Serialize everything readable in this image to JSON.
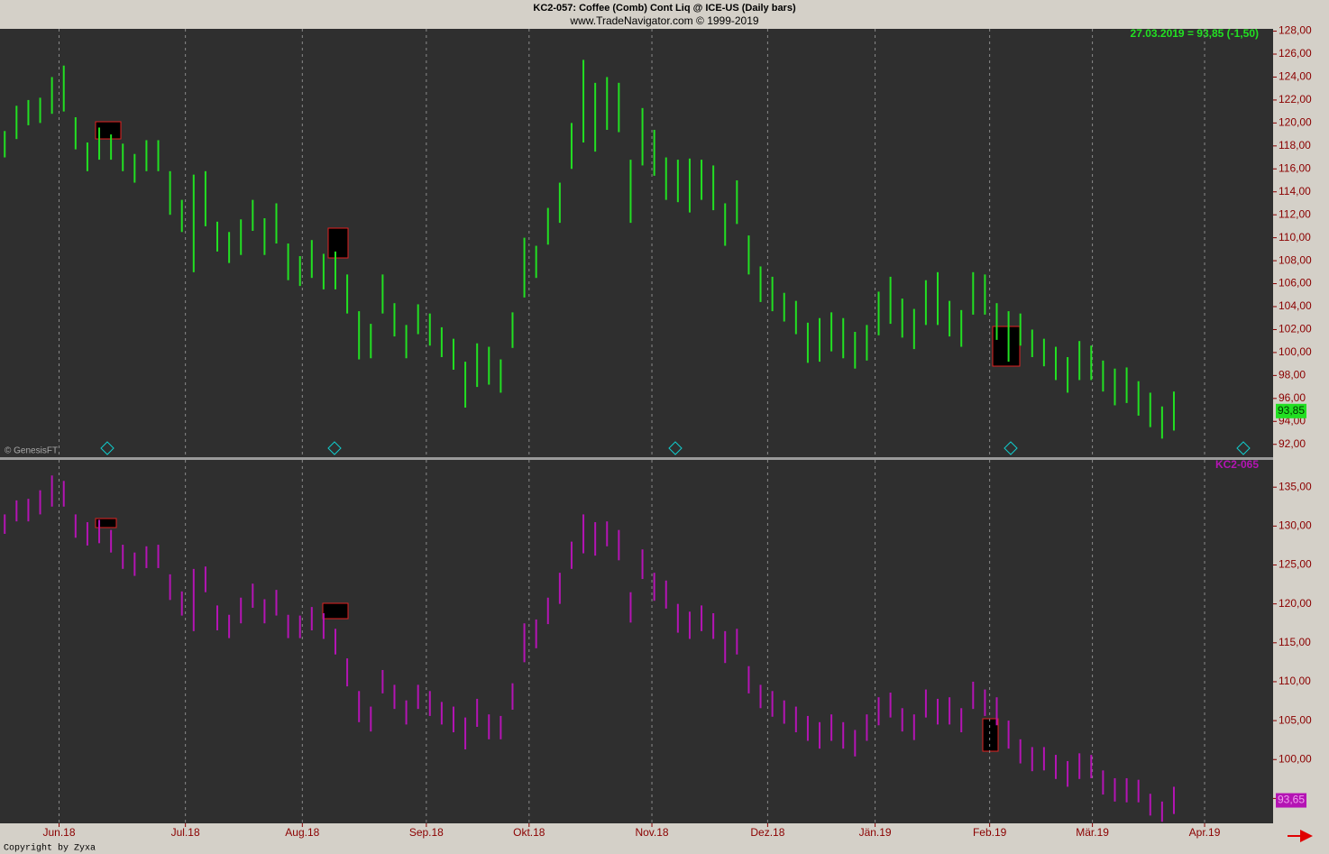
{
  "chart_data": [
    {
      "type": "ohlc",
      "title": "KC2-057:  Coffee (Comb) Cont Liq @ ICE-US  (Daily bars)",
      "subtitle": "www.TradeNavigator.com © 1999-2019",
      "annotation": "27.03.2019 = 93,85 (-1,50)",
      "source": "© GenesisFT",
      "last_label": "93,85",
      "xlim": [
        -0.4,
        107.4
      ],
      "ylim": [
        90.8,
        128.2
      ],
      "yticks": [
        {
          "value": 92,
          "label": "92,00"
        },
        {
          "value": 94,
          "label": "94,00"
        },
        {
          "value": 96,
          "label": "96,00"
        },
        {
          "value": 98,
          "label": "98,00"
        },
        {
          "value": 100,
          "label": "100,00"
        },
        {
          "value": 102,
          "label": "102,00"
        },
        {
          "value": 104,
          "label": "104,00"
        },
        {
          "value": 106,
          "label": "106,00"
        },
        {
          "value": 108,
          "label": "108,00"
        },
        {
          "value": 110,
          "label": "110,00"
        },
        {
          "value": 112,
          "label": "112,00"
        },
        {
          "value": 114,
          "label": "114,00"
        },
        {
          "value": 116,
          "label": "116,00"
        },
        {
          "value": 118,
          "label": "118,00"
        },
        {
          "value": 120,
          "label": "120,00"
        },
        {
          "value": 122,
          "label": "122,00"
        },
        {
          "value": 124,
          "label": "124,00"
        },
        {
          "value": 126,
          "label": "126,00"
        },
        {
          "value": 128,
          "label": "128,00"
        }
      ],
      "grid": true,
      "series": [
        {
          "color": "#22e022",
          "high": [
            119.3,
            121.5,
            122,
            122.2,
            124,
            125,
            120.5,
            118.3,
            119.6,
            119,
            118.2,
            117.3,
            118.5,
            118.5,
            115.8,
            113.3,
            115.5,
            115.8,
            111.4,
            110.5,
            111.6,
            113.3,
            111.7,
            113,
            109.5,
            108.4,
            109.8,
            108.6,
            108.8,
            106.8,
            103.6,
            102.5,
            106.8,
            104.3,
            102.4,
            104.2,
            103.4,
            102.2,
            101.2,
            99.2,
            100.8,
            100.5,
            99.4,
            103.5,
            110,
            109.3,
            112.6,
            114.8,
            120,
            125.5,
            123.5,
            124,
            123.5,
            116.8,
            121.3,
            119.4,
            117,
            116.8,
            116.9,
            116.8,
            116.3,
            113,
            115,
            110.2,
            107.5,
            106.6,
            105.2,
            104.5,
            102.6,
            103,
            103.5,
            103,
            101.8,
            102.4,
            105.3,
            106.6,
            104.7,
            103.8,
            106.3,
            107,
            104.5,
            103.7,
            107,
            106.8,
            104.3,
            103.6,
            103.4,
            102,
            101.2,
            100.5,
            99.6,
            101,
            100.6,
            99.3,
            98.6,
            98.7,
            97.5,
            96.5,
            95.3,
            96.6
          ],
          "low": [
            117,
            118.6,
            119.8,
            120,
            120.8,
            121,
            117.7,
            115.8,
            116.8,
            116.8,
            115.8,
            114.8,
            115.8,
            115.8,
            112,
            110.5,
            107,
            111,
            108.8,
            107.8,
            108.5,
            110.6,
            108.5,
            109.5,
            106.3,
            105.8,
            106.5,
            105.5,
            105.5,
            103.4,
            99.4,
            99.5,
            103.4,
            101.4,
            99.5,
            101.6,
            100.6,
            99.6,
            98.5,
            95.2,
            97,
            97.2,
            96.5,
            100.4,
            104.8,
            106.5,
            109.4,
            111.3,
            116,
            118.3,
            117.5,
            119.4,
            119.2,
            111.3,
            116.3,
            115.4,
            113.3,
            113.1,
            112.2,
            113.3,
            112.4,
            109.3,
            111.2,
            106.8,
            104.4,
            103.6,
            102.7,
            101.6,
            99.1,
            99.2,
            100.1,
            99.5,
            98.6,
            99.3,
            101.5,
            102.5,
            101.3,
            100.3,
            102.4,
            102.4,
            101.4,
            100.5,
            103.3,
            103.3,
            101.1,
            99.2,
            100.6,
            99.6,
            98.8,
            97.6,
            96.5,
            97.6,
            97.6,
            96.6,
            95.4,
            95.6,
            94.5,
            93.5,
            92.5,
            93.2
          ]
        }
      ]
    },
    {
      "type": "ohlc",
      "last_label": "93,65",
      "xlim": [
        -0.4,
        107.4
      ],
      "ylim": [
        91.8,
        138.5
      ],
      "xticks": [
        {
          "value": 4.6,
          "label": "Jun.18"
        },
        {
          "value": 15.3,
          "label": "Jul.18"
        },
        {
          "value": 25.2,
          "label": "Aug.18"
        },
        {
          "value": 35.7,
          "label": "Sep.18"
        },
        {
          "value": 44.4,
          "label": "Okt.18"
        },
        {
          "value": 54.8,
          "label": "Nov.18"
        },
        {
          "value": 64.6,
          "label": "Dez.18"
        },
        {
          "value": 73.7,
          "label": "Jän.19"
        },
        {
          "value": 83.4,
          "label": "Feb.19"
        },
        {
          "value": 92.1,
          "label": "Mär.19"
        },
        {
          "value": 101.6,
          "label": "Apr.19"
        }
      ],
      "yticks": [
        {
          "value": 95,
          "label": "95,00"
        },
        {
          "value": 100,
          "label": "100,00"
        },
        {
          "value": 105,
          "label": "105,00"
        },
        {
          "value": 110,
          "label": "110,00"
        },
        {
          "value": 115,
          "label": "115,00"
        },
        {
          "value": 120,
          "label": "120,00"
        },
        {
          "value": 125,
          "label": "125,00"
        },
        {
          "value": 130,
          "label": "130,00"
        },
        {
          "value": 135,
          "label": "135,00"
        }
      ],
      "grid": true,
      "series": [
        {
          "name": "KC2-065",
          "color": "#b414b4",
          "high": [
            131.5,
            133.3,
            133.5,
            134.6,
            136.5,
            135.8,
            131.5,
            130.5,
            130.8,
            129.5,
            127.6,
            126.6,
            127.4,
            127.6,
            123.8,
            121.6,
            124.5,
            124.8,
            119.8,
            118.6,
            120.8,
            122.6,
            120.6,
            121.8,
            118.6,
            118.5,
            119.6,
            118.8,
            116.8,
            113,
            108.8,
            106.8,
            111.5,
            109.6,
            107.6,
            109.6,
            108.8,
            107.4,
            106.8,
            105.4,
            107.8,
            105.8,
            105.6,
            109.8,
            117.5,
            118,
            120.8,
            124,
            128,
            131.5,
            130.5,
            130.6,
            129.5,
            121.5,
            127,
            124,
            123,
            120,
            119,
            119.8,
            118.8,
            116.5,
            116.8,
            112,
            109.6,
            108.8,
            107.6,
            106.8,
            105.6,
            104.8,
            105.8,
            104.8,
            103.8,
            105.8,
            108,
            108.6,
            106.6,
            105.8,
            109,
            107.8,
            108,
            106.6,
            110,
            109,
            108,
            105,
            102.6,
            101.6,
            101.6,
            100.6,
            99.8,
            100.8,
            100.6,
            98.6,
            97.6,
            97.6,
            97.4,
            95.6,
            94.6,
            96.5
          ],
          "low": [
            129,
            130.6,
            130.6,
            131.5,
            132.5,
            132.5,
            128.5,
            127.5,
            127.8,
            126.6,
            124.5,
            123.6,
            124.6,
            124.6,
            120.5,
            118.5,
            116.5,
            121.5,
            116.6,
            115.6,
            117.5,
            119.5,
            117.5,
            118.5,
            115.6,
            115.6,
            116.6,
            115.5,
            113.5,
            109.4,
            104.8,
            103.6,
            108.5,
            106.5,
            104.5,
            106.5,
            105.6,
            104.5,
            103.5,
            101.3,
            104.2,
            102.6,
            102.6,
            106.4,
            112.5,
            114.3,
            117.4,
            120,
            124.5,
            126.5,
            126.2,
            127.4,
            125.6,
            117.6,
            123.2,
            120.4,
            119.4,
            116.3,
            115.5,
            116.5,
            115.5,
            112.4,
            113.5,
            108.5,
            106.6,
            105.5,
            104.6,
            103.5,
            102.4,
            101.4,
            102.4,
            101.4,
            100.4,
            102.4,
            104.4,
            105.4,
            103.6,
            102.5,
            105.4,
            104.5,
            104.5,
            103.5,
            106.5,
            105.6,
            104.4,
            101.4,
            99.5,
            98.5,
            98.6,
            97.5,
            96.5,
            97.5,
            97.6,
            95.5,
            94.6,
            94.5,
            94.5,
            92.8,
            92,
            93
          ]
        }
      ]
    }
  ],
  "footer": "Copyright by Zyxa"
}
